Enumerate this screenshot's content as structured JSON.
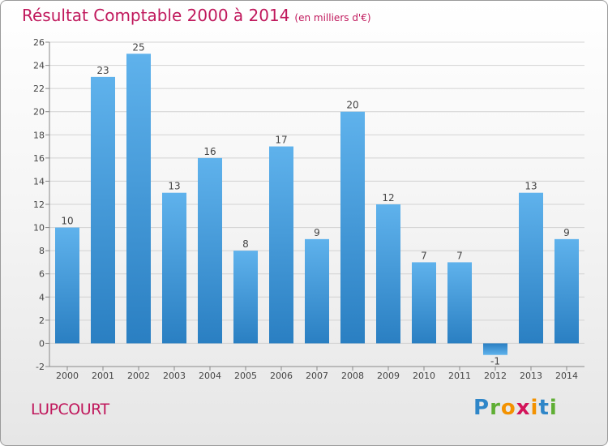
{
  "chart_data": {
    "type": "bar",
    "title": "Résultat Comptable 2000 à 2014",
    "subtitle": "(en milliers d'€)",
    "categories": [
      "2000",
      "2001",
      "2002",
      "2003",
      "2004",
      "2005",
      "2006",
      "2007",
      "2008",
      "2009",
      "2010",
      "2011",
      "2012",
      "2013",
      "2014"
    ],
    "values": [
      10,
      23,
      25,
      13,
      16,
      8,
      17,
      9,
      20,
      12,
      7,
      7,
      -1,
      13,
      9
    ],
    "ylim": [
      -2,
      26
    ],
    "yticks": [
      -2,
      0,
      2,
      4,
      6,
      8,
      10,
      12,
      14,
      16,
      18,
      20,
      22,
      24,
      26
    ],
    "grid": true,
    "xlabel": "",
    "ylabel": "",
    "bar_color": "#4a9fdd"
  },
  "location": "LUPCOURT",
  "logo": {
    "text": "Proxiti",
    "letters": [
      "P",
      "r",
      "o",
      "x",
      "i",
      "t",
      "i"
    ],
    "colors": [
      "#2f86c8",
      "#5fae34",
      "#f39200",
      "#d3145a",
      "#f39200",
      "#2f86c8",
      "#5fae34"
    ]
  },
  "colors": {
    "accent": "#c0185c"
  }
}
